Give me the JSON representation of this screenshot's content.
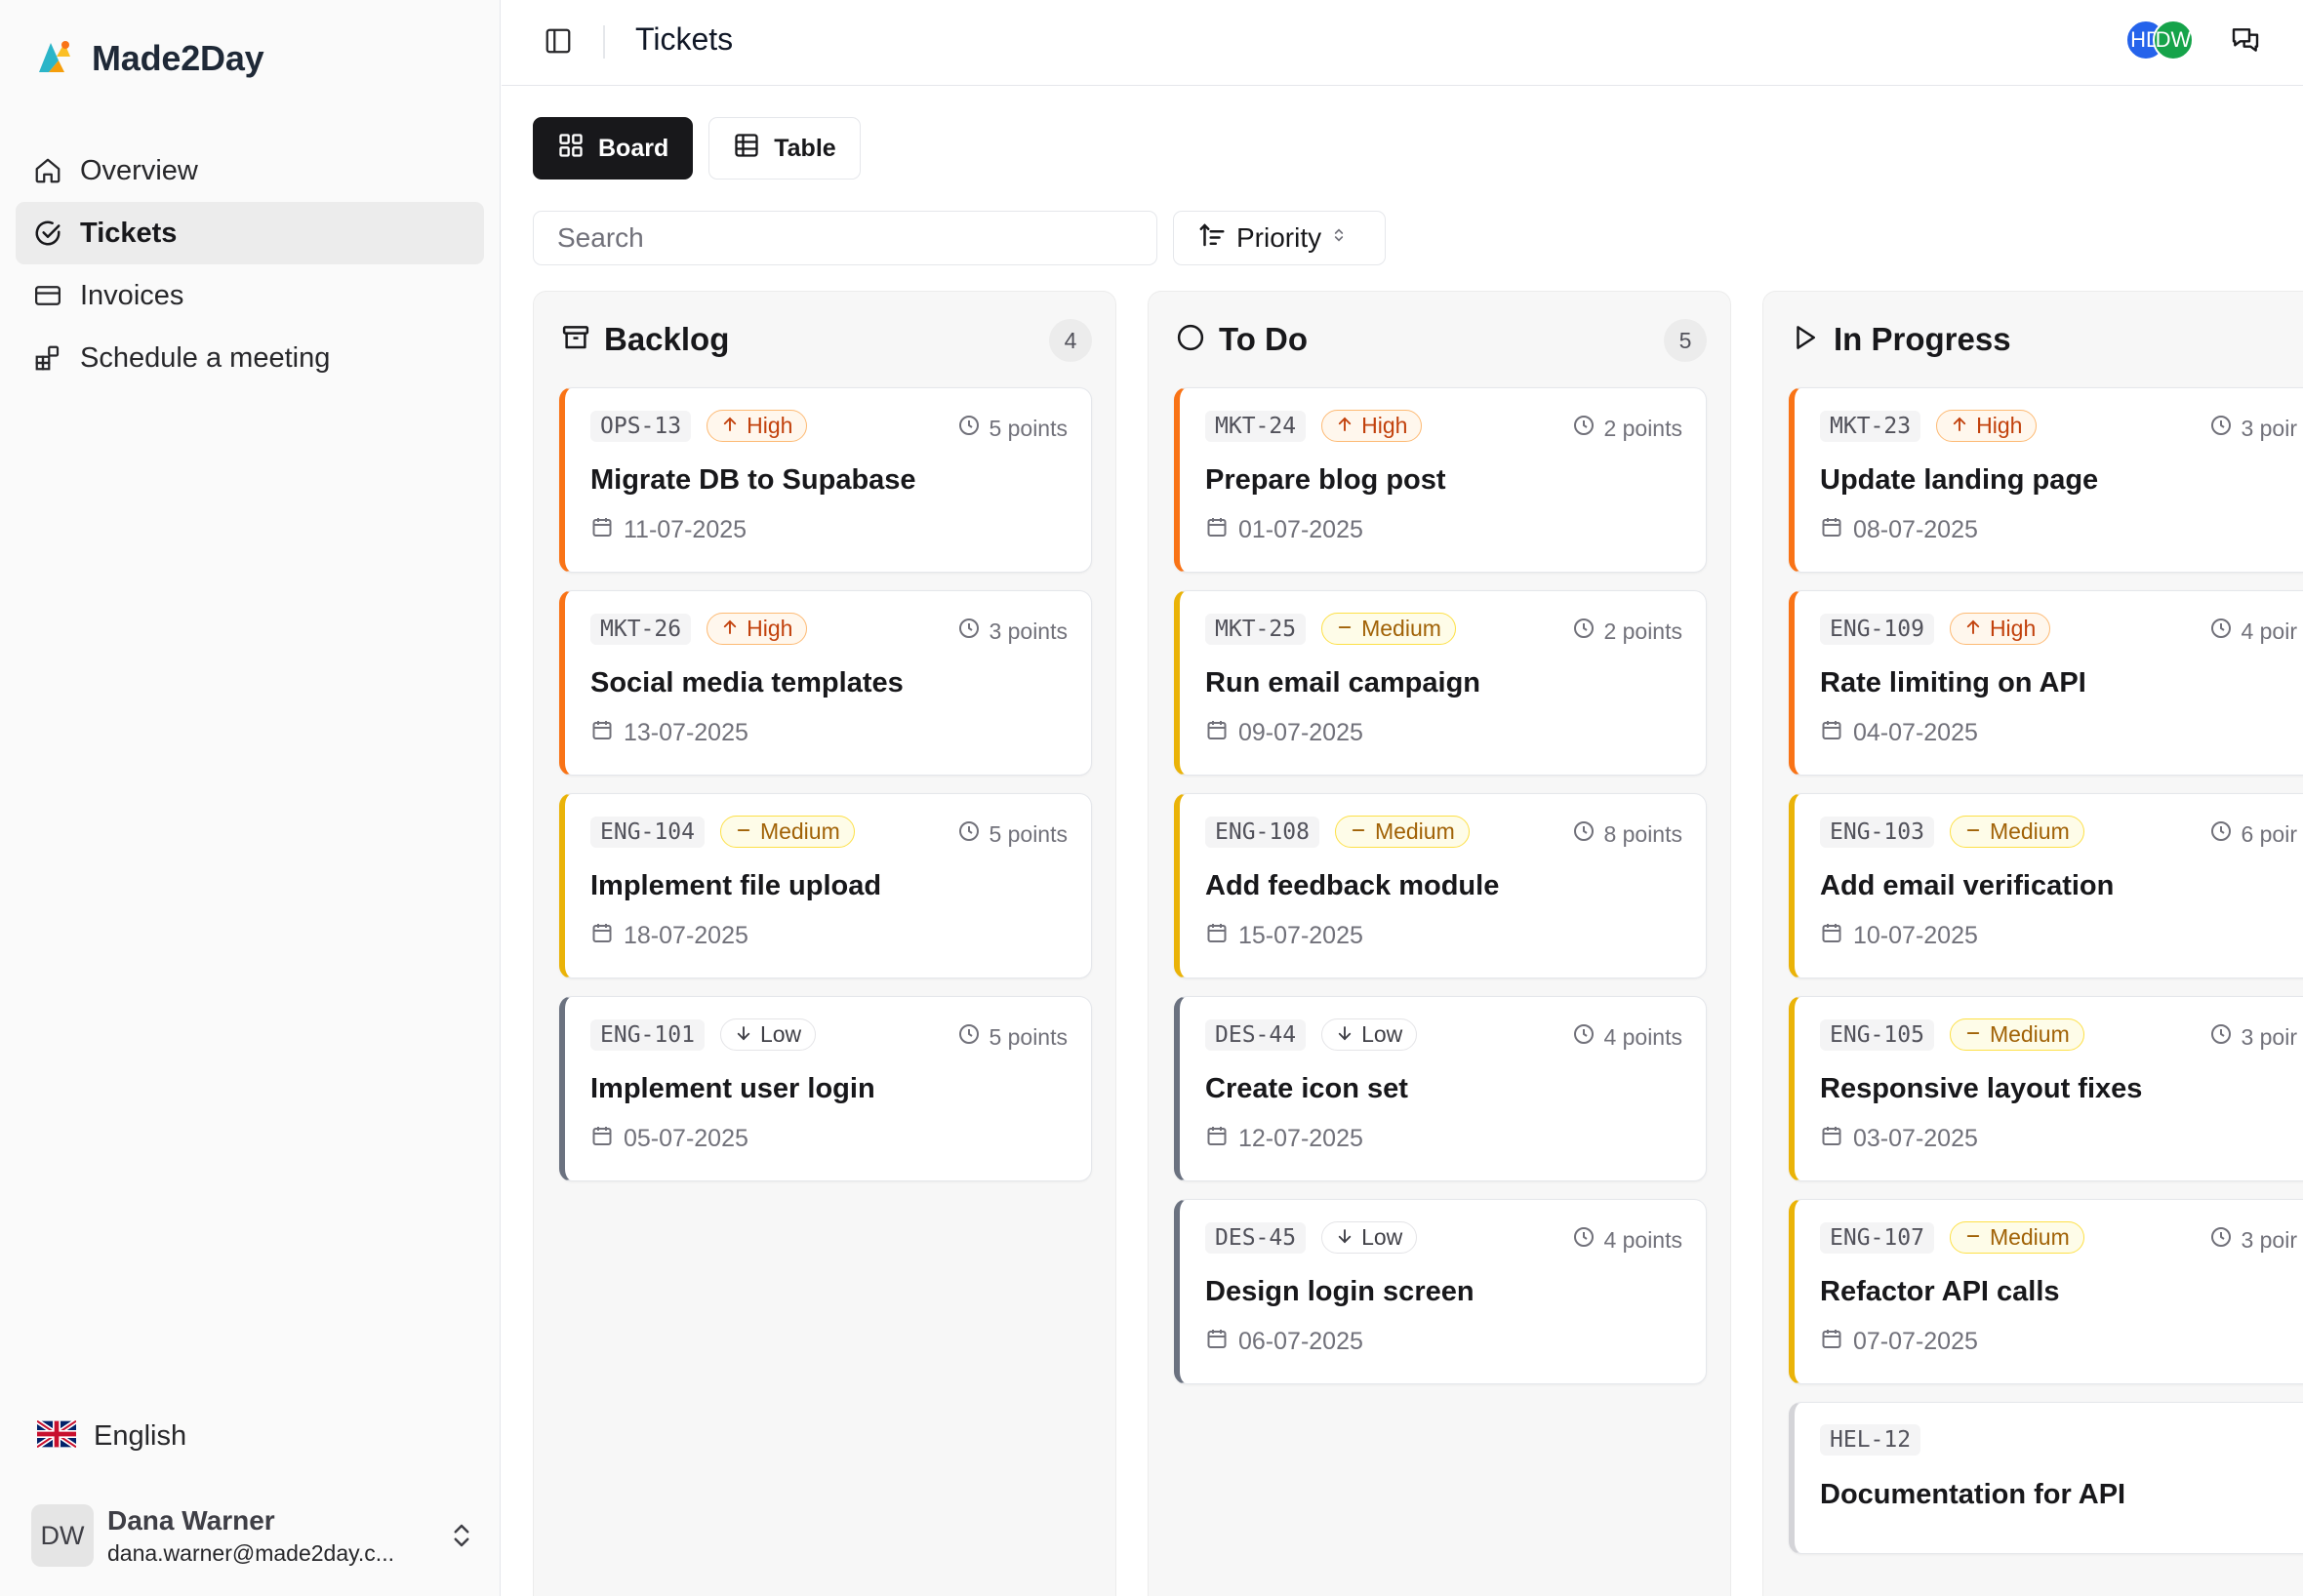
{
  "app": {
    "name": "Made2Day"
  },
  "sidebar": {
    "items": [
      {
        "label": "Overview",
        "icon": "home-icon",
        "active": false
      },
      {
        "label": "Tickets",
        "icon": "check-circle-icon",
        "active": true
      },
      {
        "label": "Invoices",
        "icon": "credit-card-icon",
        "active": false
      },
      {
        "label": "Schedule a meeting",
        "icon": "blocks-icon",
        "active": false
      }
    ],
    "language": {
      "label": "English",
      "icon": "uk-flag-icon"
    },
    "user": {
      "initials": "DW",
      "name": "Dana Warner",
      "email": "dana.warner@made2day.c..."
    }
  },
  "header": {
    "title": "Tickets",
    "avatars": [
      {
        "initials": "HD",
        "color": "#2563eb"
      },
      {
        "initials": "DW",
        "color": "#16a34a"
      }
    ]
  },
  "view_toggle": {
    "board_label": "Board",
    "table_label": "Table",
    "active": "Board"
  },
  "search": {
    "placeholder": "Search",
    "value": ""
  },
  "sort": {
    "label": "Priority"
  },
  "colors": {
    "high": "#f97316",
    "medium": "#eab308",
    "low": "#6b7280",
    "accent": "#18181b"
  },
  "columns": [
    {
      "title": "Backlog",
      "icon": "archive-icon",
      "count": "4",
      "cards": [
        {
          "id": "OPS-13",
          "priority": "High",
          "points": "5 points",
          "title": "Migrate DB to Supabase",
          "date": "11-07-2025"
        },
        {
          "id": "MKT-26",
          "priority": "High",
          "points": "3 points",
          "title": "Social media templates",
          "date": "13-07-2025"
        },
        {
          "id": "ENG-104",
          "priority": "Medium",
          "points": "5 points",
          "title": "Implement file upload",
          "date": "18-07-2025"
        },
        {
          "id": "ENG-101",
          "priority": "Low",
          "points": "5 points",
          "title": "Implement user login",
          "date": "05-07-2025"
        }
      ]
    },
    {
      "title": "To Do",
      "icon": "circle-icon",
      "count": "5",
      "cards": [
        {
          "id": "MKT-24",
          "priority": "High",
          "points": "2 points",
          "title": "Prepare blog post",
          "date": "01-07-2025"
        },
        {
          "id": "MKT-25",
          "priority": "Medium",
          "points": "2 points",
          "title": "Run email campaign",
          "date": "09-07-2025"
        },
        {
          "id": "ENG-108",
          "priority": "Medium",
          "points": "8 points",
          "title": "Add feedback module",
          "date": "15-07-2025"
        },
        {
          "id": "DES-44",
          "priority": "Low",
          "points": "4 points",
          "title": "Create icon set",
          "date": "12-07-2025"
        },
        {
          "id": "DES-45",
          "priority": "Low",
          "points": "4 points",
          "title": "Design login screen",
          "date": "06-07-2025"
        }
      ]
    },
    {
      "title": "In Progress",
      "icon": "play-icon",
      "count": "",
      "cards": [
        {
          "id": "MKT-23",
          "priority": "High",
          "points": "3 poir",
          "title": "Update landing page",
          "date": "08-07-2025"
        },
        {
          "id": "ENG-109",
          "priority": "High",
          "points": "4 poir",
          "title": "Rate limiting on API",
          "date": "04-07-2025"
        },
        {
          "id": "ENG-103",
          "priority": "Medium",
          "points": "6 poir",
          "title": "Add email verification",
          "date": "10-07-2025"
        },
        {
          "id": "ENG-105",
          "priority": "Medium",
          "points": "3 poir",
          "title": "Responsive layout fixes",
          "date": "03-07-2025"
        },
        {
          "id": "ENG-107",
          "priority": "Medium",
          "points": "3 poir",
          "title": "Refactor API calls",
          "date": "07-07-2025"
        },
        {
          "id": "HEL-12",
          "priority": "",
          "points": "",
          "title": "Documentation for API",
          "date": ""
        }
      ]
    }
  ]
}
